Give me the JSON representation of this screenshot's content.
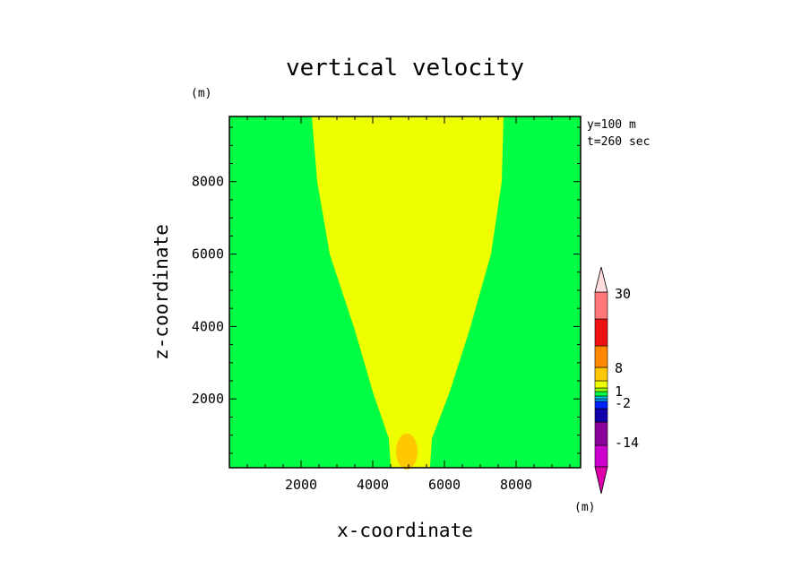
{
  "chart_data": {
    "type": "heatmap",
    "title": "vertical velocity",
    "xlabel": "x-coordinate",
    "ylabel": "z-coordinate",
    "x_unit": "(m)",
    "y_unit": "(m)",
    "xlim": [
      0,
      9800
    ],
    "ylim": [
      100,
      9800
    ],
    "x_ticks": [
      2000,
      4000,
      6000,
      8000
    ],
    "y_ticks": [
      2000,
      4000,
      6000,
      8000
    ],
    "info_lines": [
      "y=100 m",
      "t=260 sec"
    ],
    "plume_outer": {
      "color": "#eeff00",
      "left": [
        [
          4500,
          150
        ],
        [
          4450,
          900
        ],
        [
          4000,
          2200
        ],
        [
          3500,
          3900
        ],
        [
          2800,
          6000
        ],
        [
          2450,
          8000
        ],
        [
          2300,
          9800
        ]
      ],
      "right": [
        [
          5600,
          150
        ],
        [
          5650,
          900
        ],
        [
          6150,
          2200
        ],
        [
          6700,
          3900
        ],
        [
          7300,
          6000
        ],
        [
          7600,
          8000
        ],
        [
          7650,
          9800
        ]
      ]
    },
    "core": {
      "color": "#ffc800",
      "x": 4950,
      "z": 550,
      "rx": 300,
      "rz": 500
    },
    "background_color": "#00ff44",
    "colorbar": {
      "unit": "(m)",
      "labels": [
        {
          "text": "30",
          "level": 30
        },
        {
          "text": "8",
          "level": 8
        },
        {
          "text": "1",
          "level": 1
        },
        {
          "text": "-2",
          "level": -2
        },
        {
          "text": "-14",
          "level": -14
        }
      ],
      "segments": [
        {
          "color": "#cc00cc"
        },
        {
          "color": "#880099"
        },
        {
          "color": "#1100aa"
        },
        {
          "color": "#0022ff"
        },
        {
          "color": "#0099ff"
        },
        {
          "color": "#00ccdd"
        },
        {
          "color": "#00ff44"
        },
        {
          "color": "#99ff00"
        },
        {
          "color": "#eeff00"
        },
        {
          "color": "#ffc800"
        },
        {
          "color": "#ff8800"
        },
        {
          "color": "#ee1111"
        },
        {
          "color": "#ff7777"
        },
        {
          "color": "#ffbbbb"
        }
      ],
      "arrow_top_color": "#ffdddd",
      "arrow_bottom_color": "#dd00aa"
    }
  }
}
